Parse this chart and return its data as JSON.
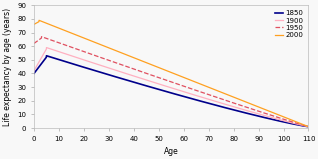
{
  "title": "",
  "xlabel": "Age",
  "ylabel": "Life expectancy by age (years)",
  "xlim": [
    0,
    110
  ],
  "ylim": [
    0,
    90
  ],
  "xticks": [
    0,
    10,
    20,
    30,
    40,
    50,
    60,
    70,
    80,
    90,
    100,
    110
  ],
  "yticks": [
    0,
    10,
    20,
    30,
    40,
    50,
    60,
    70,
    80,
    90
  ],
  "series": [
    {
      "label": "1850",
      "color": "#00008B",
      "linestyle": "solid",
      "linewidth": 1.2,
      "start_y": 40,
      "peak_age": 5,
      "peak_y": 52,
      "decay_power": 1.15
    },
    {
      "label": "1900",
      "color": "#FFB0C0",
      "linestyle": "solid",
      "linewidth": 0.9,
      "start_y": 42,
      "peak_age": 5,
      "peak_y": 58,
      "decay_power": 1.1
    },
    {
      "label": "1950",
      "color": "#E05060",
      "linestyle": "dashed",
      "linewidth": 0.9,
      "start_y": 62,
      "peak_age": 3,
      "peak_y": 66,
      "decay_power": 1.05
    },
    {
      "label": "2000",
      "color": "#FFA020",
      "linestyle": "solid",
      "linewidth": 0.9,
      "start_y": 76,
      "peak_age": 2,
      "peak_y": 78,
      "decay_power": 1.0
    }
  ],
  "legend_loc": "upper right",
  "background_color": "#f8f8f8",
  "font_size": 5.5
}
